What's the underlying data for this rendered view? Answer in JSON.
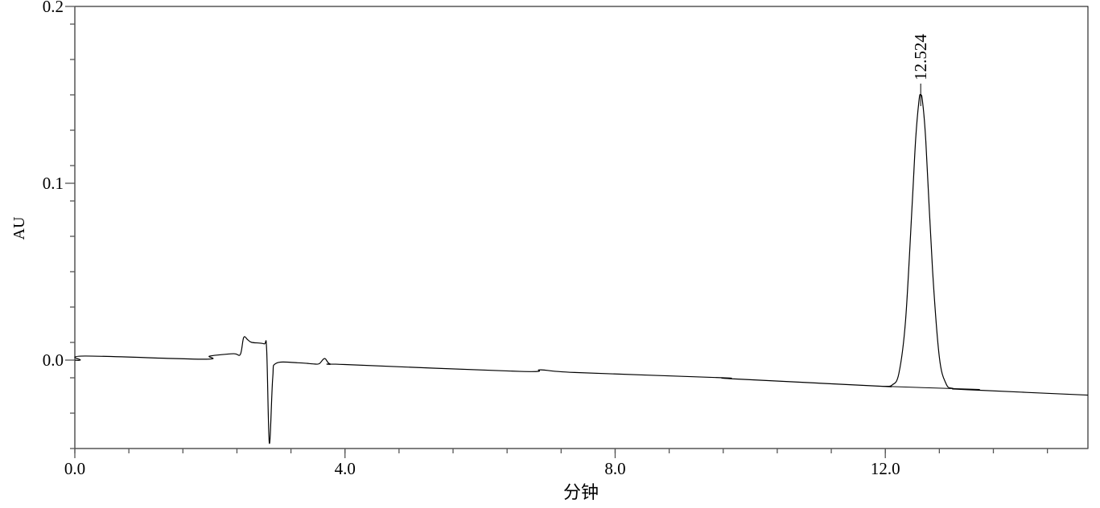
{
  "chart_data": {
    "type": "line",
    "title": "",
    "xlabel": "分钟",
    "ylabel": "AU",
    "xlim": [
      0,
      15.0
    ],
    "ylim": [
      -0.05,
      0.2
    ],
    "x_ticks": [
      {
        "value": 0,
        "label": "0.0"
      },
      {
        "value": 4,
        "label": "4.0"
      },
      {
        "value": 8,
        "label": "8.0"
      },
      {
        "value": 12,
        "label": "12.0"
      }
    ],
    "x_minor_step": 0.8,
    "y_ticks": [
      {
        "value": 0.0,
        "label": "0.0"
      },
      {
        "value": 0.1,
        "label": "0.1"
      },
      {
        "value": 0.2,
        "label": "0.2"
      }
    ],
    "y_minor_step": 0.02,
    "grid": false,
    "line_color": "#000000",
    "series": [
      {
        "points": [
          [
            0.0,
            0.0
          ],
          [
            0.08,
            0.0
          ],
          [
            0.15,
            0.0023
          ],
          [
            1.9,
            0.0005
          ],
          [
            2.0,
            0.0023
          ],
          [
            2.35,
            0.0036
          ],
          [
            2.45,
            0.0032
          ],
          [
            2.5,
            0.0128
          ],
          [
            2.56,
            0.0115
          ],
          [
            2.62,
            0.01
          ],
          [
            2.8,
            0.0092
          ],
          [
            2.84,
            0.006
          ],
          [
            2.88,
            -0.047
          ],
          [
            2.93,
            -0.01
          ],
          [
            2.98,
            -0.0018
          ],
          [
            3.3,
            -0.0015
          ],
          [
            3.55,
            -0.0022
          ],
          [
            3.62,
            -0.002
          ],
          [
            3.7,
            0.0009
          ],
          [
            3.78,
            -0.0022
          ],
          [
            4.0,
            -0.0025
          ],
          [
            6.6,
            -0.0064
          ],
          [
            6.9,
            -0.0055
          ],
          [
            7.4,
            -0.007
          ],
          [
            9.6,
            -0.01
          ],
          [
            9.7,
            -0.0105
          ],
          [
            11.9,
            -0.0147
          ],
          [
            12.0,
            -0.0148
          ],
          [
            12.1,
            -0.0141
          ],
          [
            12.2,
            -0.0077
          ],
          [
            12.3,
            0.0225
          ],
          [
            12.4,
            0.0898
          ],
          [
            12.45,
            0.1253
          ],
          [
            12.5,
            0.1472
          ],
          [
            12.524,
            0.15
          ],
          [
            12.55,
            0.1465
          ],
          [
            12.6,
            0.1236
          ],
          [
            12.7,
            0.0506
          ],
          [
            12.8,
            0.0017
          ],
          [
            12.9,
            -0.0134
          ],
          [
            13.0,
            -0.016
          ],
          [
            13.2,
            -0.0167
          ],
          [
            15.0,
            -0.0198
          ]
        ]
      }
    ],
    "baseline_segment": [
      [
        11.95,
        -0.0148
      ],
      [
        13.4,
        -0.0166
      ]
    ],
    "annotations": [
      {
        "x": 12.524,
        "y": 0.15,
        "label": "12.524"
      }
    ]
  }
}
